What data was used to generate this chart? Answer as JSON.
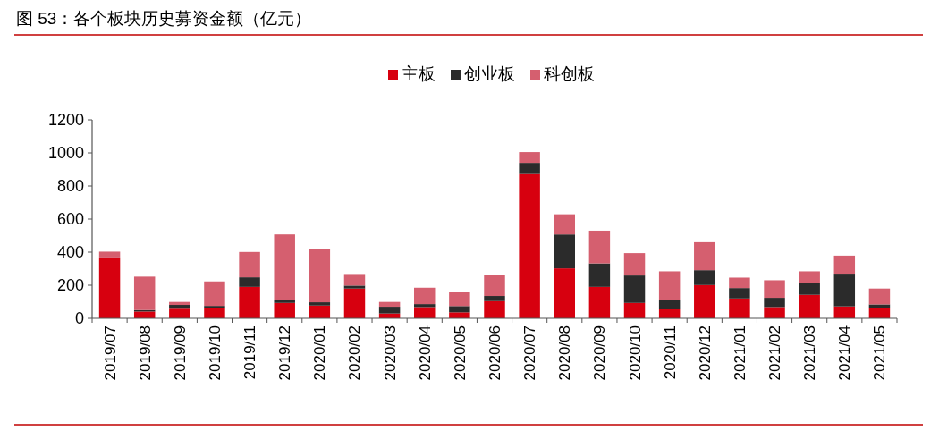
{
  "chart_data": {
    "type": "bar",
    "title": "图 53：各个板块历史募资金额（亿元）",
    "stacked": true,
    "legend": "top",
    "grid": false,
    "categories": [
      "2019/07",
      "2019/08",
      "2019/09",
      "2019/10",
      "2019/11",
      "2019/12",
      "2020/01",
      "2020/02",
      "2020/03",
      "2020/04",
      "2020/05",
      "2020/06",
      "2020/07",
      "2020/08",
      "2020/09",
      "2020/10",
      "2020/11",
      "2020/12",
      "2021/01",
      "2021/02",
      "2021/03",
      "2021/04",
      "2021/05"
    ],
    "series": [
      {
        "name": "主板",
        "color": "#d7000f",
        "values": [
          368,
          41,
          58,
          63,
          190,
          93,
          77,
          180,
          29,
          68,
          36,
          104,
          872,
          302,
          190,
          93,
          54,
          201,
          120,
          68,
          142,
          72,
          61
        ]
      },
      {
        "name": "创业板",
        "color": "#2b2b2b",
        "values": [
          0,
          9,
          23,
          12,
          58,
          20,
          20,
          18,
          41,
          18,
          38,
          31,
          68,
          205,
          142,
          166,
          59,
          90,
          63,
          56,
          70,
          198,
          23
        ]
      },
      {
        "name": "科创板",
        "color": "#d55f6f",
        "values": [
          35,
          202,
          18,
          148,
          153,
          394,
          320,
          70,
          29,
          99,
          86,
          126,
          65,
          122,
          198,
          135,
          171,
          169,
          63,
          106,
          72,
          109,
          96
        ]
      }
    ],
    "ylim": [
      0,
      1200
    ],
    "yticks": [
      0,
      200,
      400,
      600,
      800,
      1000,
      1200
    ]
  }
}
